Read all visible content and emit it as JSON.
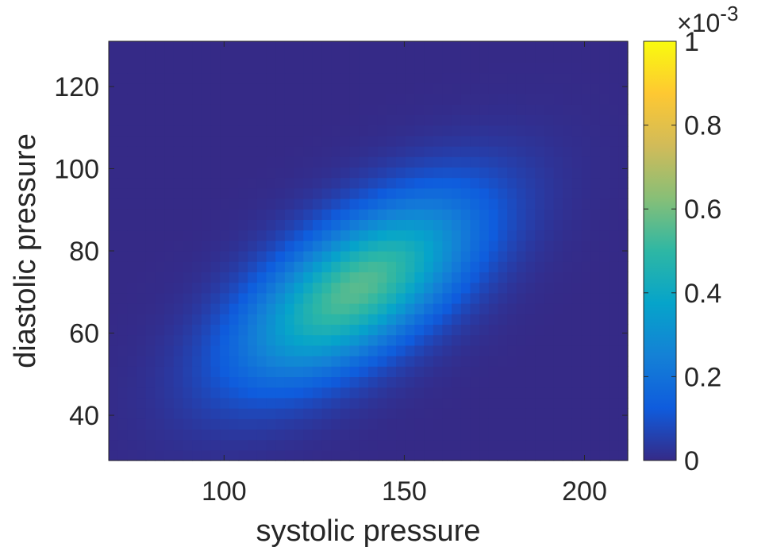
{
  "chart_data": {
    "type": "heatmap",
    "title": "",
    "xlabel": "systolic pressure",
    "ylabel": "diastolic pressure",
    "xlim": [
      68,
      212
    ],
    "ylim": [
      29,
      131
    ],
    "x_ticks": [
      100,
      150,
      200
    ],
    "y_ticks": [
      40,
      60,
      80,
      100,
      120
    ],
    "grid": false,
    "legend": "none",
    "colormap": "parula",
    "colorbar": {
      "range": [
        0,
        0.001
      ],
      "ticks": [
        0,
        0.2,
        0.4,
        0.6,
        0.8,
        1
      ],
      "tick_labels": [
        "0",
        "0.2",
        "0.4",
        "0.6",
        "0.8",
        "1"
      ],
      "multiplier": "×10",
      "exponent": "-3",
      "placement": "right"
    },
    "grid_cells": {
      "nx": 56,
      "ny": 40
    },
    "density": {
      "peak_value": 0.00056,
      "peak_at": {
        "systolic": 137,
        "diastolic": 71
      },
      "std_systolic": 22,
      "std_diastolic": 15,
      "correlation": 0.62
    },
    "colors": {
      "parula": [
        "#352a87",
        "#0f5cdd",
        "#1481d6",
        "#06a4ca",
        "#2eb7a4",
        "#87bf77",
        "#d1bb59",
        "#fec832",
        "#f9fb0e"
      ]
    }
  }
}
